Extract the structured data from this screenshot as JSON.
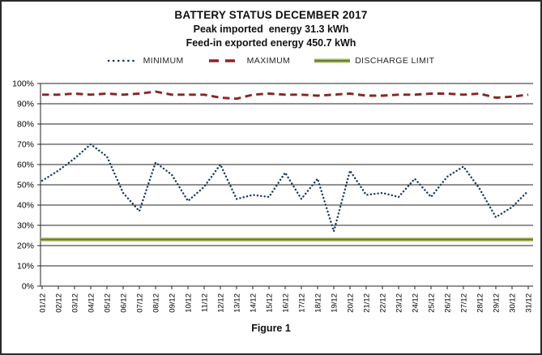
{
  "caption": "Figure 1",
  "chart_data": {
    "type": "line",
    "title": "BATTERY STATUS DECEMBER 2017",
    "subtitle1": "Peak imported  energy 31.3 kWh",
    "subtitle2": "Feed-in exported energy 450.7 kWh",
    "xlabel": "",
    "ylabel": "",
    "ylim": [
      0,
      100
    ],
    "ytick_step": 10,
    "ytick_labels": [
      "0%",
      "10%",
      "20%",
      "30%",
      "40%",
      "50%",
      "60%",
      "70%",
      "80%",
      "90%",
      "100%"
    ],
    "grid": true,
    "legend_position": "top",
    "categories": [
      "01/12",
      "02/12",
      "03/12",
      "04/12",
      "05/12",
      "06/12",
      "07/12",
      "08/12",
      "09/12",
      "10/12",
      "11/12",
      "12/12",
      "13/12",
      "14/12",
      "15/12",
      "16/12",
      "17/12",
      "18/12",
      "19/12",
      "20/12",
      "21/12",
      "22/12",
      "23/12",
      "24/12",
      "25/12",
      "26/12",
      "27/12",
      "28/12",
      "29/12",
      "30/12",
      "31/12"
    ],
    "series": [
      {
        "name": "MINIMUM",
        "style": "dotted",
        "color": "#17375E",
        "values": [
          52,
          57,
          63,
          70,
          64,
          46,
          37,
          61,
          55,
          42,
          49,
          60,
          43,
          45,
          44,
          56,
          43,
          53,
          27,
          57,
          45,
          46,
          44,
          53,
          44,
          54,
          59,
          48,
          34,
          39,
          47
        ]
      },
      {
        "name": "MAXIMUM",
        "style": "dashed",
        "color": "#8B2423",
        "values": [
          94.5,
          94.5,
          95,
          94.5,
          95,
          94.5,
          95,
          96,
          94.5,
          94.5,
          94.5,
          93,
          92.5,
          94.5,
          95,
          94.5,
          94.5,
          94,
          94.5,
          95,
          94,
          94,
          94.5,
          94.5,
          95,
          95,
          94.5,
          95,
          93,
          93.5,
          94.5
        ]
      },
      {
        "name": "DISCHARGE LIMIT",
        "style": "solid",
        "color": "#76923C",
        "constant": 23
      }
    ]
  }
}
